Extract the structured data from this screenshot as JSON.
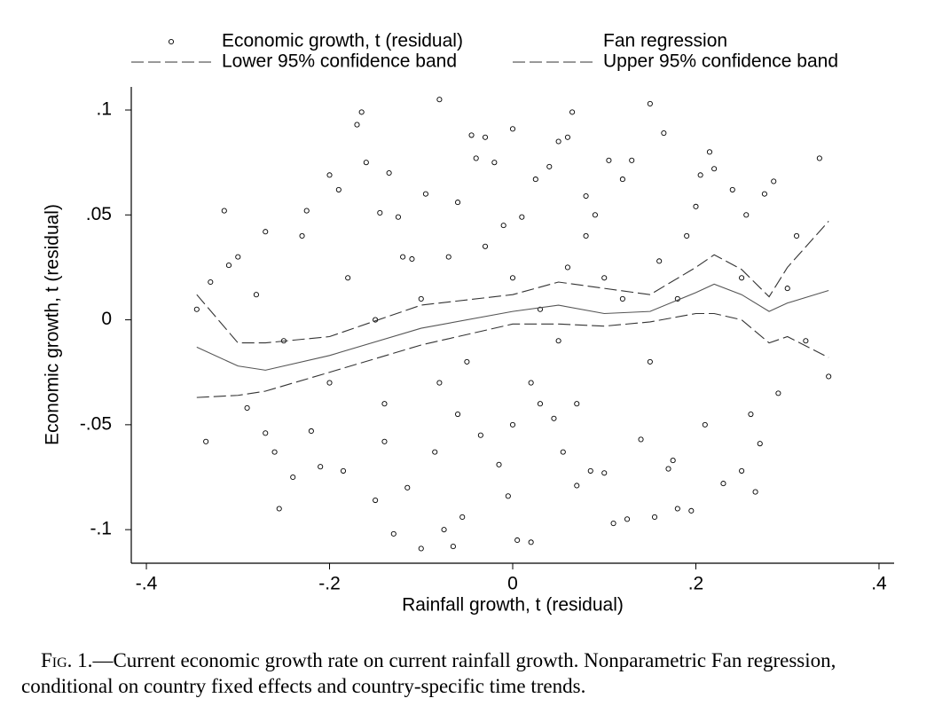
{
  "chart_data": {
    "type": "scatter",
    "xlabel": "Rainfall growth, t (residual)",
    "ylabel": "Economic growth, t (residual)",
    "xlim": [
      -0.4165,
      0.4165
    ],
    "ylim": [
      -0.116,
      0.111
    ],
    "xticks": [
      {
        "value": -0.4,
        "label": "-.4"
      },
      {
        "value": -0.2,
        "label": "-.2"
      },
      0,
      {
        "value": 0.2,
        "label": ".2"
      },
      {
        "value": 0.4,
        "label": ".4"
      }
    ],
    "yticks": [
      {
        "value": -0.1,
        "label": "-.1"
      },
      {
        "value": -0.05,
        "label": "-.05"
      },
      0,
      {
        "value": 0.05,
        "label": ".05"
      },
      {
        "value": 0.1,
        "label": ".1"
      }
    ],
    "series": [
      {
        "name": "Economic growth, t (residual)",
        "type": "scatter",
        "color": "#000000",
        "x": [
          -0.345,
          -0.335,
          -0.33,
          -0.315,
          -0.31,
          -0.3,
          -0.29,
          -0.28,
          -0.27,
          -0.27,
          -0.26,
          -0.255,
          -0.24,
          -0.23,
          -0.225,
          -0.22,
          -0.21,
          -0.2,
          -0.19,
          -0.185,
          -0.17,
          -0.165,
          -0.16,
          -0.15,
          -0.145,
          -0.14,
          -0.135,
          -0.13,
          -0.125,
          -0.115,
          -0.11,
          -0.1,
          -0.095,
          -0.085,
          -0.08,
          -0.075,
          -0.07,
          -0.065,
          -0.06,
          -0.055,
          -0.045,
          -0.04,
          -0.035,
          -0.03,
          -0.02,
          -0.015,
          -0.01,
          -0.005,
          0.0,
          0.005,
          0.01,
          0.02,
          0.025,
          0.03,
          0.04,
          0.045,
          0.05,
          0.055,
          0.06,
          0.065,
          0.07,
          0.08,
          0.085,
          0.09,
          0.1,
          0.105,
          0.11,
          0.12,
          0.125,
          0.13,
          0.14,
          0.15,
          0.155,
          0.16,
          0.165,
          0.17,
          0.175,
          0.18,
          0.19,
          0.195,
          0.2,
          0.205,
          0.21,
          0.215,
          0.22,
          0.23,
          0.24,
          0.25,
          0.255,
          0.26,
          0.265,
          0.27,
          0.275,
          0.285,
          0.29,
          0.3,
          0.31,
          0.32,
          0.335,
          0.345,
          -0.1,
          -0.05,
          0.0,
          0.05,
          0.1,
          -0.15,
          -0.2,
          0.15,
          -0.08,
          0.02,
          0.08,
          -0.12,
          0.12,
          -0.03,
          0.03,
          -0.18,
          0.18,
          -0.25,
          0.25,
          0.06,
          -0.06,
          0.0,
          0.07,
          -0.14
        ],
        "values": [
          0.005,
          -0.058,
          0.018,
          0.052,
          0.026,
          0.03,
          -0.042,
          0.012,
          0.042,
          -0.054,
          -0.063,
          -0.09,
          -0.075,
          0.04,
          0.052,
          -0.053,
          -0.07,
          0.069,
          0.062,
          -0.072,
          0.093,
          0.099,
          0.075,
          -0.086,
          0.051,
          -0.058,
          0.07,
          -0.102,
          0.049,
          -0.08,
          0.029,
          -0.109,
          0.06,
          -0.063,
          0.105,
          -0.1,
          0.03,
          -0.108,
          0.056,
          -0.094,
          0.088,
          0.077,
          -0.055,
          0.087,
          0.075,
          -0.069,
          0.045,
          -0.084,
          0.091,
          -0.105,
          0.049,
          -0.106,
          0.067,
          -0.04,
          0.073,
          -0.047,
          0.085,
          -0.063,
          0.087,
          0.099,
          -0.079,
          0.059,
          -0.072,
          0.05,
          -0.073,
          0.076,
          -0.097,
          0.067,
          -0.095,
          0.076,
          -0.057,
          0.103,
          -0.094,
          0.028,
          0.089,
          -0.071,
          -0.067,
          -0.09,
          0.04,
          -0.091,
          0.054,
          0.069,
          -0.05,
          0.08,
          0.072,
          -0.078,
          0.062,
          -0.072,
          0.05,
          -0.045,
          -0.082,
          -0.059,
          0.06,
          0.066,
          -0.035,
          0.015,
          0.04,
          -0.01,
          0.077,
          -0.027,
          0.01,
          -0.02,
          0.02,
          -0.01,
          0.02,
          0.0,
          -0.03,
          -0.02,
          -0.03,
          -0.03,
          0.04,
          0.03,
          0.01,
          0.035,
          0.005,
          0.02,
          0.01,
          -0.01,
          0.02,
          0.025,
          -0.045,
          -0.05,
          -0.04,
          -0.04
        ]
      },
      {
        "name": "Fan regression",
        "type": "line",
        "line_style": "solid",
        "color": "#555555",
        "x": [
          -0.345,
          -0.3,
          -0.27,
          -0.2,
          -0.1,
          0,
          0.05,
          0.1,
          0.15,
          0.2,
          0.22,
          0.25,
          0.28,
          0.3,
          0.345
        ],
        "values": [
          -0.013,
          -0.022,
          -0.024,
          -0.017,
          -0.004,
          0.004,
          0.007,
          0.003,
          0.004,
          0.013,
          0.017,
          0.012,
          0.004,
          0.008,
          0.014
        ]
      },
      {
        "name": "Lower 95% confidence band",
        "type": "line",
        "line_style": "dashed",
        "color": "#333333",
        "x": [
          -0.345,
          -0.3,
          -0.27,
          -0.2,
          -0.1,
          0,
          0.05,
          0.1,
          0.15,
          0.2,
          0.22,
          0.25,
          0.28,
          0.3,
          0.345
        ],
        "values": [
          -0.037,
          -0.036,
          -0.034,
          -0.025,
          -0.012,
          -0.002,
          -0.002,
          -0.003,
          -0.001,
          0.003,
          0.003,
          0.0,
          -0.011,
          -0.008,
          -0.018
        ]
      },
      {
        "name": "Upper 95% confidence band",
        "type": "line",
        "line_style": "dashed",
        "color": "#333333",
        "x": [
          -0.345,
          -0.3,
          -0.27,
          -0.2,
          -0.1,
          0,
          0.05,
          0.1,
          0.15,
          0.2,
          0.22,
          0.25,
          0.28,
          0.3,
          0.345
        ],
        "values": [
          0.012,
          -0.011,
          -0.011,
          -0.008,
          0.007,
          0.012,
          0.018,
          0.015,
          0.012,
          0.025,
          0.031,
          0.024,
          0.011,
          0.025,
          0.047
        ]
      }
    ],
    "caption": {
      "label": "Fig. 1.",
      "text": "—Current economic growth rate on current rainfall growth. Nonparametric Fan regression, conditional on country fixed effects and country-specific time trends."
    }
  }
}
